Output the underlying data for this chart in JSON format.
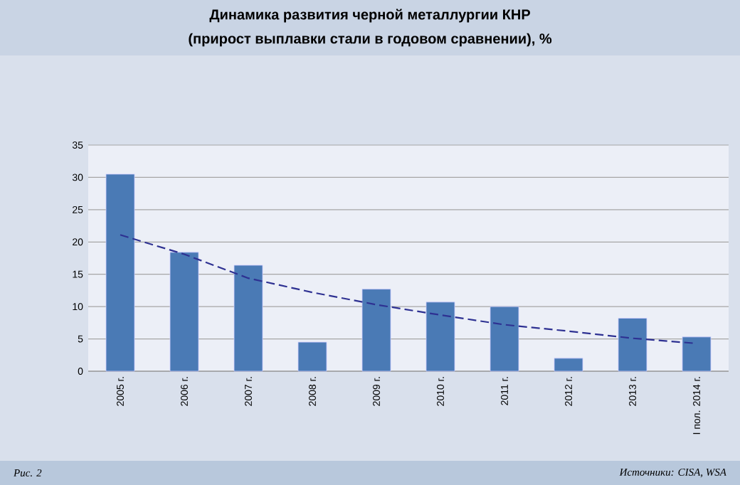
{
  "chart_data": {
    "type": "bar",
    "title": "Динамика развития черной металлургии КНР",
    "subtitle": "(прирост выплавки стали в годовом сравнении), %",
    "categories": [
      "2005 г.",
      "2006 г.",
      "2007 г.",
      "2008 г.",
      "2009 г.",
      "2010 г.",
      "2011 г.",
      "2012 г.",
      "2013 г.",
      "I пол. 2014 г."
    ],
    "series": [
      {
        "color": "#4a7ab5",
        "values": [
          30.5,
          18.4,
          16.4,
          4.5,
          12.7,
          10.7,
          10.0,
          2.0,
          8.2,
          5.3
        ]
      },
      {
        "type": "line",
        "color": "#2e3192",
        "line_style": "dashed",
        "values": [
          21.1,
          18.1,
          14.4,
          12.2,
          10.3,
          8.7,
          7.2,
          6.2,
          5.1,
          4.3
        ]
      }
    ],
    "ylim": [
      0,
      35
    ],
    "yticks": [
      0,
      5,
      10,
      15,
      20,
      25,
      30,
      35
    ],
    "grid": "y",
    "annotations": [
      "Рис. 2",
      "Источники: CISA, WSA"
    ]
  }
}
